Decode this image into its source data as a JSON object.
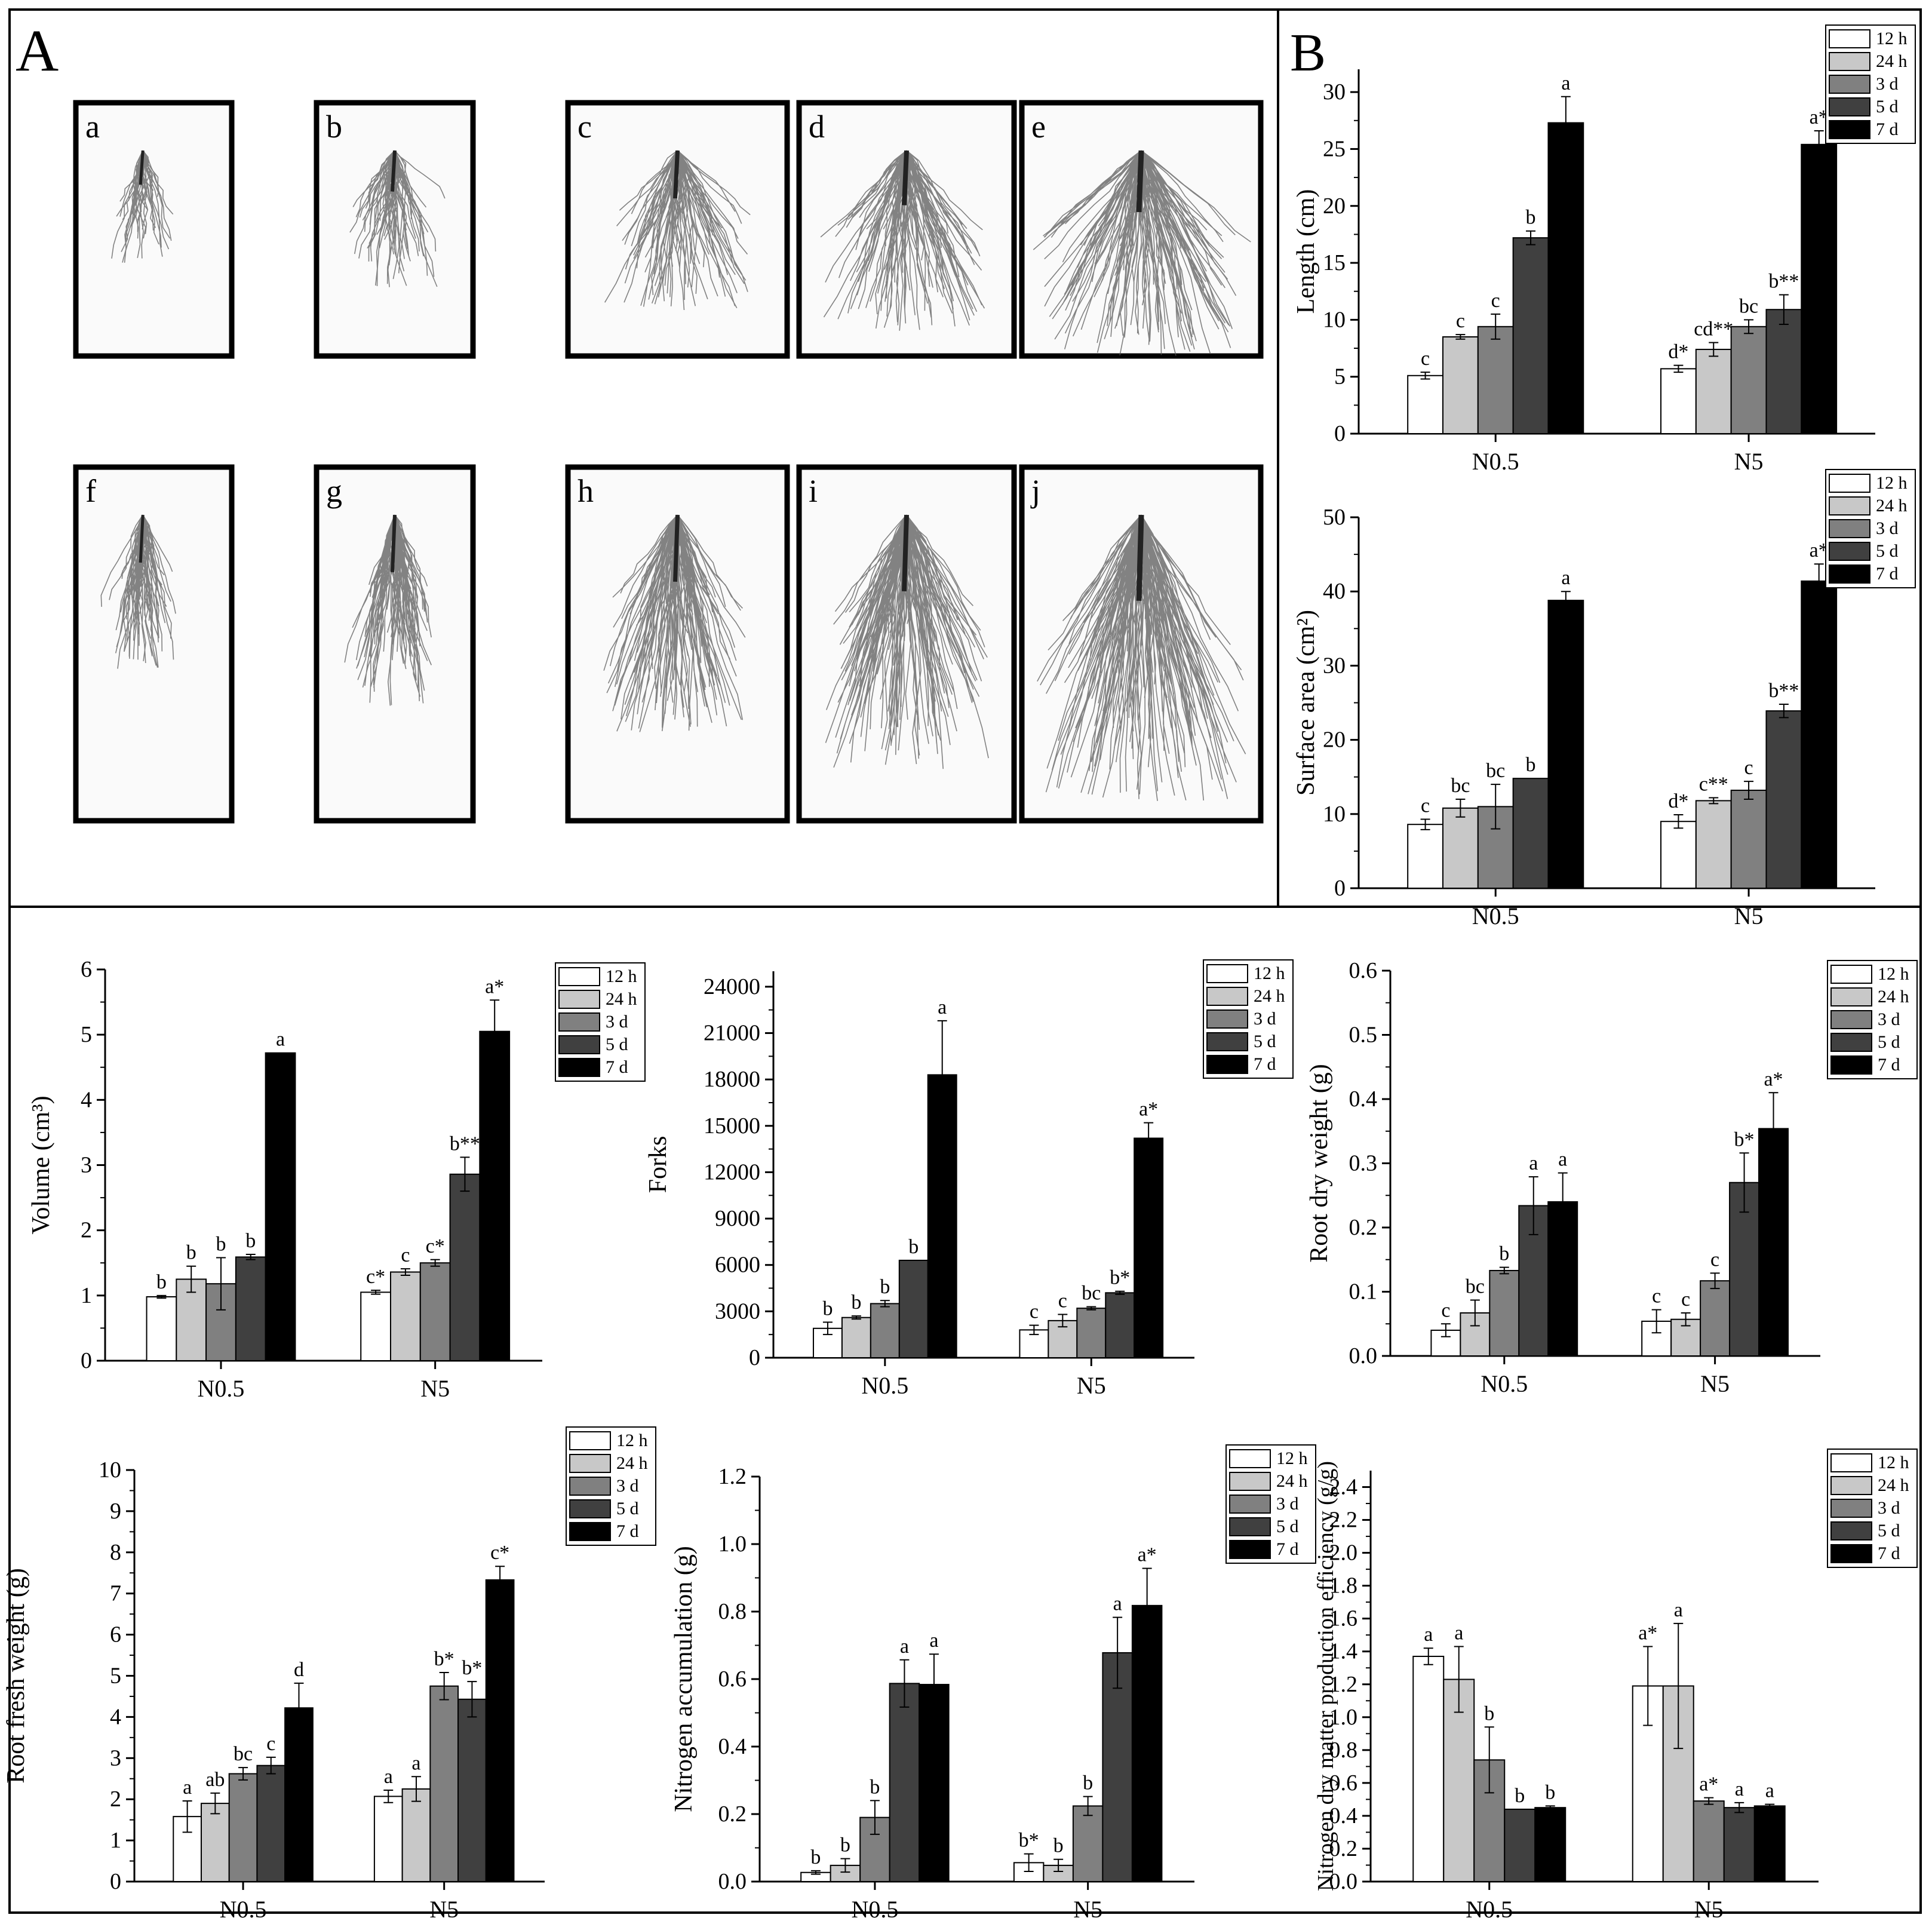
{
  "panel_labels": {
    "A": "A",
    "B": "B"
  },
  "root_images": [
    {
      "label": "a"
    },
    {
      "label": "b"
    },
    {
      "label": "c"
    },
    {
      "label": "d"
    },
    {
      "label": "e"
    },
    {
      "label": "f"
    },
    {
      "label": "g"
    },
    {
      "label": "h"
    },
    {
      "label": "i"
    },
    {
      "label": "j"
    }
  ],
  "colors": {
    "12 h": "#ffffff",
    "24 h": "#c8c8c8",
    "3 d": "#808080",
    "5 d": "#404040",
    "7 d": "#000000"
  },
  "chart_data": [
    {
      "type": "bar",
      "ylabel": "Length (cm)",
      "ylim": [
        0,
        32
      ],
      "yticks": [
        0,
        5,
        10,
        15,
        20,
        25,
        30
      ],
      "categories": [
        "N0.5",
        "N5"
      ],
      "legend": [
        "12 h",
        "24 h",
        "3 d",
        "5 d",
        "7 d"
      ],
      "series": [
        {
          "name": "12 h",
          "values": [
            5.1,
            5.7
          ],
          "errors": [
            0.3,
            0.3
          ],
          "labels": [
            "c",
            "d*"
          ]
        },
        {
          "name": "24 h",
          "values": [
            8.5,
            7.4
          ],
          "errors": [
            0.2,
            0.6
          ],
          "labels": [
            "c",
            "cd**"
          ]
        },
        {
          "name": "3 d",
          "values": [
            9.4,
            9.4
          ],
          "errors": [
            1.1,
            0.6
          ],
          "labels": [
            "c",
            "bc"
          ]
        },
        {
          "name": "5 d",
          "values": [
            17.2,
            10.9
          ],
          "errors": [
            0.6,
            1.3
          ],
          "labels": [
            "b",
            "b**"
          ]
        },
        {
          "name": "7 d",
          "values": [
            27.3,
            25.4
          ],
          "errors": [
            2.3,
            1.2
          ],
          "labels": [
            "a",
            "a*"
          ]
        }
      ]
    },
    {
      "type": "bar",
      "ylabel": "Surface area (cm²)",
      "ylim": [
        0,
        50
      ],
      "yticks": [
        0,
        10,
        20,
        30,
        40,
        50
      ],
      "categories": [
        "N0.5",
        "N5"
      ],
      "legend": [
        "12 h",
        "24 h",
        "3 d",
        "5 d",
        "7 d"
      ],
      "series": [
        {
          "name": "12 h",
          "values": [
            8.6,
            9.0
          ],
          "errors": [
            0.7,
            0.9
          ],
          "labels": [
            "c",
            "d*"
          ]
        },
        {
          "name": "24 h",
          "values": [
            10.8,
            11.8
          ],
          "errors": [
            1.2,
            0.4
          ],
          "labels": [
            "bc",
            "c**"
          ]
        },
        {
          "name": "3 d",
          "values": [
            11.0,
            13.2
          ],
          "errors": [
            3.0,
            1.2
          ],
          "labels": [
            "bc",
            "c"
          ]
        },
        {
          "name": "5 d",
          "values": [
            14.8,
            23.9
          ],
          "errors": [
            0.0,
            0.9
          ],
          "labels": [
            "b",
            "b**"
          ]
        },
        {
          "name": "7 d",
          "values": [
            38.8,
            41.4
          ],
          "errors": [
            1.2,
            2.3
          ],
          "labels": [
            "a",
            "a*"
          ]
        }
      ]
    },
    {
      "type": "bar",
      "ylabel": "Volume (cm³)",
      "ylim": [
        0,
        6
      ],
      "yticks": [
        0,
        1,
        2,
        3,
        4,
        5,
        6
      ],
      "categories": [
        "N0.5",
        "N5"
      ],
      "legend": [
        "12 h",
        "24 h",
        "3 d",
        "5 d",
        "7 d"
      ],
      "series": [
        {
          "name": "12 h",
          "values": [
            0.98,
            1.05
          ],
          "errors": [
            0.02,
            0.03
          ],
          "labels": [
            "b",
            "c*"
          ]
        },
        {
          "name": "24 h",
          "values": [
            1.25,
            1.36
          ],
          "errors": [
            0.2,
            0.05
          ],
          "labels": [
            "b",
            "c"
          ]
        },
        {
          "name": "3 d",
          "values": [
            1.18,
            1.5
          ],
          "errors": [
            0.4,
            0.05
          ],
          "labels": [
            "b",
            "c*"
          ]
        },
        {
          "name": "5 d",
          "values": [
            1.59,
            2.86
          ],
          "errors": [
            0.04,
            0.26
          ],
          "labels": [
            "b",
            "b**"
          ]
        },
        {
          "name": "7 d",
          "values": [
            4.72,
            5.05
          ],
          "errors": [
            0.0,
            0.48
          ],
          "labels": [
            "a",
            "a*"
          ]
        }
      ]
    },
    {
      "type": "bar",
      "ylabel": "Forks",
      "ylim": [
        0,
        25000
      ],
      "yticks": [
        0,
        3000,
        6000,
        9000,
        12000,
        15000,
        18000,
        21000,
        24000
      ],
      "categories": [
        "N0.5",
        "N5"
      ],
      "legend": [
        "12 h",
        "24 h",
        "3 d",
        "5 d",
        "7 d"
      ],
      "series": [
        {
          "name": "12 h",
          "values": [
            1900,
            1800
          ],
          "errors": [
            400,
            300
          ],
          "labels": [
            "b",
            "c"
          ]
        },
        {
          "name": "24 h",
          "values": [
            2600,
            2400
          ],
          "errors": [
            100,
            400
          ],
          "labels": [
            "b",
            "c"
          ]
        },
        {
          "name": "3 d",
          "values": [
            3500,
            3200
          ],
          "errors": [
            200,
            100
          ],
          "labels": [
            "b",
            "bc"
          ]
        },
        {
          "name": "5 d",
          "values": [
            6300,
            4200
          ],
          "errors": [
            0,
            100
          ],
          "labels": [
            "b",
            "b*"
          ]
        },
        {
          "name": "7 d",
          "values": [
            18300,
            14200
          ],
          "errors": [
            3500,
            1000
          ],
          "labels": [
            "a",
            "a*"
          ]
        }
      ]
    },
    {
      "type": "bar",
      "ylabel": "Root dry weight (g)",
      "ylim": [
        0,
        0.6
      ],
      "yticks": [
        0.0,
        0.1,
        0.2,
        0.3,
        0.4,
        0.5,
        0.6
      ],
      "tick_decimals": 1,
      "categories": [
        "N0.5",
        "N5"
      ],
      "legend": [
        "12 h",
        "24 h",
        "3 d",
        "5 d",
        "7 d"
      ],
      "series": [
        {
          "name": "12 h",
          "values": [
            0.04,
            0.054
          ],
          "errors": [
            0.01,
            0.018
          ],
          "labels": [
            "c",
            "c"
          ]
        },
        {
          "name": "24 h",
          "values": [
            0.067,
            0.057
          ],
          "errors": [
            0.02,
            0.01
          ],
          "labels": [
            "bc",
            "c"
          ]
        },
        {
          "name": "3 d",
          "values": [
            0.133,
            0.117
          ],
          "errors": [
            0.005,
            0.012
          ],
          "labels": [
            "b",
            "c"
          ]
        },
        {
          "name": "5 d",
          "values": [
            0.234,
            0.27
          ],
          "errors": [
            0.045,
            0.046
          ],
          "labels": [
            "a",
            "b*"
          ]
        },
        {
          "name": "7 d",
          "values": [
            0.24,
            0.354
          ],
          "errors": [
            0.045,
            0.056
          ],
          "labels": [
            "a",
            "a*"
          ]
        }
      ]
    },
    {
      "type": "bar",
      "ylabel": "Root fresh weight (g)",
      "ylim": [
        0,
        10
      ],
      "yticks": [
        0,
        1,
        2,
        3,
        4,
        5,
        6,
        7,
        8,
        9,
        10
      ],
      "categories": [
        "N0.5",
        "N5"
      ],
      "legend": [
        "12 h",
        "24 h",
        "3 d",
        "5 d",
        "7 d"
      ],
      "series": [
        {
          "name": "12 h",
          "values": [
            1.58,
            2.07
          ],
          "errors": [
            0.38,
            0.15
          ],
          "labels": [
            "a",
            "a"
          ]
        },
        {
          "name": "24 h",
          "values": [
            1.9,
            2.25
          ],
          "errors": [
            0.25,
            0.3
          ],
          "labels": [
            "ab",
            "a"
          ]
        },
        {
          "name": "3 d",
          "values": [
            2.62,
            4.75
          ],
          "errors": [
            0.15,
            0.33
          ],
          "labels": [
            "bc",
            "b*"
          ]
        },
        {
          "name": "5 d",
          "values": [
            2.82,
            4.43
          ],
          "errors": [
            0.2,
            0.43
          ],
          "labels": [
            "c",
            "b*"
          ]
        },
        {
          "name": "7 d",
          "values": [
            4.22,
            7.33
          ],
          "errors": [
            0.6,
            0.33
          ],
          "labels": [
            "d",
            "c*"
          ]
        }
      ]
    },
    {
      "type": "bar",
      "ylabel": "Nitrogen accumulation (g)",
      "ylim": [
        0,
        1.2
      ],
      "yticks": [
        0.0,
        0.2,
        0.4,
        0.6,
        0.8,
        1.0,
        1.2
      ],
      "tick_decimals": 1,
      "categories": [
        "N0.5",
        "N5"
      ],
      "legend": [
        "12 h",
        "24 h",
        "3 d",
        "5 d",
        "7 d"
      ],
      "series": [
        {
          "name": "12 h",
          "values": [
            0.027,
            0.056
          ],
          "errors": [
            0.005,
            0.026
          ],
          "labels": [
            "b",
            "b*"
          ]
        },
        {
          "name": "24 h",
          "values": [
            0.048,
            0.048
          ],
          "errors": [
            0.02,
            0.018
          ],
          "labels": [
            "b",
            "b"
          ]
        },
        {
          "name": "3 d",
          "values": [
            0.19,
            0.224
          ],
          "errors": [
            0.05,
            0.028
          ],
          "labels": [
            "b",
            "b"
          ]
        },
        {
          "name": "5 d",
          "values": [
            0.587,
            0.678
          ],
          "errors": [
            0.07,
            0.105
          ],
          "labels": [
            "a",
            "a"
          ]
        },
        {
          "name": "7 d",
          "values": [
            0.584,
            0.818
          ],
          "errors": [
            0.09,
            0.11
          ],
          "labels": [
            "a",
            "a*"
          ]
        }
      ]
    },
    {
      "type": "bar",
      "ylabel": "Nitrogen dry matter production efficiency (g/g)",
      "ylim": [
        0,
        2.5
      ],
      "yticks": [
        0.0,
        0.2,
        0.4,
        0.6,
        0.8,
        1.0,
        1.2,
        1.4,
        1.6,
        1.8,
        2.0,
        2.2,
        2.4
      ],
      "tick_decimals": 1,
      "categories": [
        "N0.5",
        "N5"
      ],
      "legend": [
        "12 h",
        "24 h",
        "3 d",
        "5 d",
        "7 d"
      ],
      "series": [
        {
          "name": "12 h",
          "values": [
            1.37,
            1.19
          ],
          "errors": [
            0.05,
            0.24
          ],
          "labels": [
            "a",
            "a*"
          ]
        },
        {
          "name": "24 h",
          "values": [
            1.23,
            1.19
          ],
          "errors": [
            0.2,
            0.38
          ],
          "labels": [
            "a",
            "a"
          ]
        },
        {
          "name": "3 d",
          "values": [
            0.74,
            0.49
          ],
          "errors": [
            0.2,
            0.02
          ],
          "labels": [
            "b",
            "a*"
          ]
        },
        {
          "name": "5 d",
          "values": [
            0.44,
            0.45
          ],
          "errors": [
            0.0,
            0.03
          ],
          "labels": [
            "b",
            "a"
          ]
        },
        {
          "name": "7 d",
          "values": [
            0.45,
            0.46
          ],
          "errors": [
            0.01,
            0.01
          ],
          "labels": [
            "b",
            "a"
          ]
        }
      ]
    }
  ]
}
